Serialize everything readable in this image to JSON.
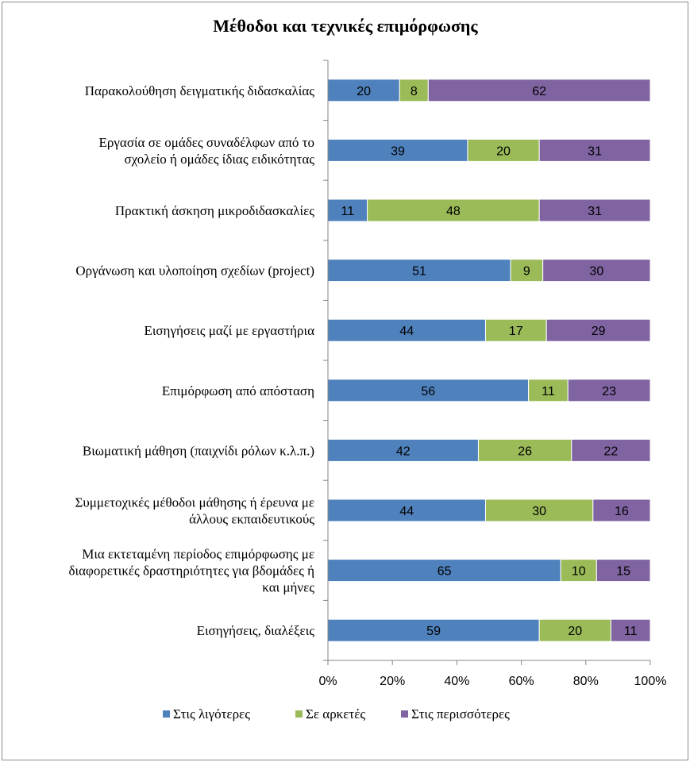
{
  "chart_data": {
    "type": "bar",
    "orientation": "horizontal",
    "stacked": "percent",
    "title": "Μέθοδοι και τεχνικές επιμόρφωσης",
    "xlabel": "",
    "ylabel": "",
    "xlim": [
      0,
      100
    ],
    "x_ticks": [
      "0%",
      "20%",
      "40%",
      "60%",
      "80%",
      "100%"
    ],
    "grid": false,
    "legend_position": "bottom",
    "categories": [
      [
        "Παρακολούθηση δειγματικής διδασκαλίας"
      ],
      [
        "Εργασία σε ομάδες συναδέλφων από το",
        "σχολείο ή ομάδες ίδιας ειδικότητας"
      ],
      [
        "Πρακτική άσκηση μικροδιδασκαλίες"
      ],
      [
        "Οργάνωση και υλοποίηση σχεδίων (project)"
      ],
      [
        "Εισηγήσεις μαζί με εργαστήρια"
      ],
      [
        "Επιμόρφωση από απόσταση"
      ],
      [
        "Βιωματική μάθηση (παιχνίδι ρόλων κ.λ.π.)"
      ],
      [
        "Συμμετοχικές μέθοδοι μάθησης ή έρευνα με",
        "άλλους εκπαιδευτικούς"
      ],
      [
        "Μια εκτεταμένη περίοδος επιμόρφωσης με",
        "διαφορετικές δραστηριότητες για βδομάδες ή",
        "και μήνες"
      ],
      [
        "Εισηγήσεις, διαλέξεις"
      ]
    ],
    "series": [
      {
        "name": "Στις λιγότερες",
        "color": "#4F81BD",
        "values": [
          20,
          39,
          11,
          51,
          44,
          56,
          42,
          44,
          65,
          59
        ]
      },
      {
        "name": "Σε αρκετές",
        "color": "#9BBB59",
        "values": [
          8,
          20,
          48,
          9,
          17,
          11,
          26,
          30,
          10,
          20
        ]
      },
      {
        "name": "Στις περισσότερες",
        "color": "#8064A2",
        "values": [
          62,
          31,
          31,
          30,
          29,
          23,
          22,
          16,
          15,
          11
        ]
      }
    ]
  }
}
